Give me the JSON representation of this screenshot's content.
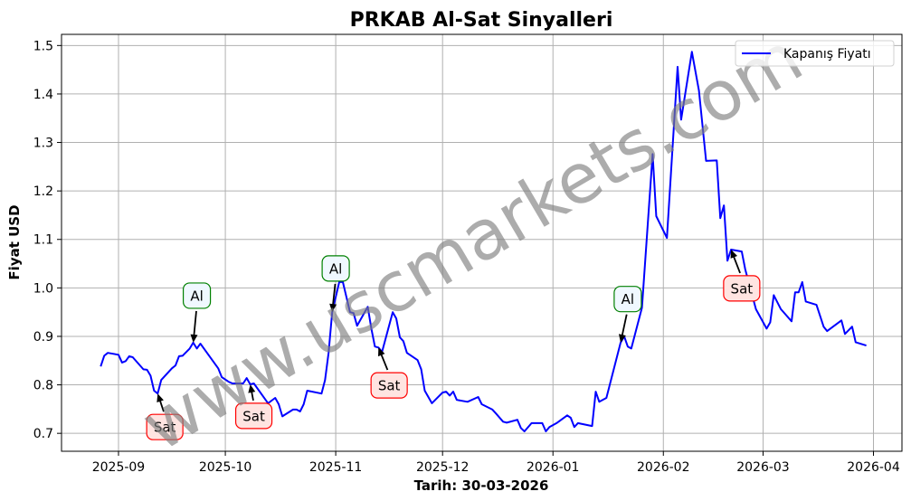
{
  "chart_data": {
    "type": "line",
    "title": "PRKAB Al-Sat Sinyalleri",
    "xlabel": "Tarih: 30-03-2026",
    "ylabel": "Fiyat USD",
    "xlim": [
      "2025-08-16",
      "2026-04-09"
    ],
    "ylim": [
      0.663,
      1.523
    ],
    "x_ticks": [
      "2025-09-01",
      "2025-10-01",
      "2025-11-01",
      "2025-12-01",
      "2026-01-01",
      "2026-02-01",
      "2026-03-01",
      "2026-04-01"
    ],
    "x_tick_labels": [
      "2025-09",
      "2025-10",
      "2025-11",
      "2025-12",
      "2026-01",
      "2026-02",
      "2026-03",
      "2026-04"
    ],
    "y_ticks": [
      0.7,
      0.8,
      0.9,
      1.0,
      1.1,
      1.2,
      1.3,
      1.4,
      1.5
    ],
    "y_tick_labels": [
      "0.7",
      "0.8",
      "0.9",
      "1.0",
      "1.1",
      "1.2",
      "1.3",
      "1.4",
      "1.5"
    ],
    "grid": true,
    "legend_position": "top-right",
    "watermark": "www.uscmarkets.com",
    "series": [
      {
        "name": "Kapanış Fiyatı",
        "color": "#0000ff",
        "points": [
          [
            "2025-08-27",
            0.838
          ],
          [
            "2025-08-28",
            0.86
          ],
          [
            "2025-08-29",
            0.866
          ],
          [
            "2025-09-01",
            0.862
          ],
          [
            "2025-09-02",
            0.846
          ],
          [
            "2025-09-03",
            0.849
          ],
          [
            "2025-09-04",
            0.859
          ],
          [
            "2025-09-05",
            0.857
          ],
          [
            "2025-09-08",
            0.832
          ],
          [
            "2025-09-09",
            0.831
          ],
          [
            "2025-09-10",
            0.819
          ],
          [
            "2025-09-11",
            0.788
          ],
          [
            "2025-09-12",
            0.782
          ],
          [
            "2025-09-13",
            0.81
          ],
          [
            "2025-09-16",
            0.834
          ],
          [
            "2025-09-17",
            0.84
          ],
          [
            "2025-09-18",
            0.859
          ],
          [
            "2025-09-19",
            0.86
          ],
          [
            "2025-09-21",
            0.875
          ],
          [
            "2025-09-22",
            0.887
          ],
          [
            "2025-09-23",
            0.875
          ],
          [
            "2025-09-24",
            0.885
          ],
          [
            "2025-09-29",
            0.834
          ],
          [
            "2025-09-30",
            0.816
          ],
          [
            "2025-10-02",
            0.806
          ],
          [
            "2025-10-03",
            0.803
          ],
          [
            "2025-10-06",
            0.803
          ],
          [
            "2025-10-07",
            0.814
          ],
          [
            "2025-10-08",
            0.801
          ],
          [
            "2025-10-09",
            0.803
          ],
          [
            "2025-10-13",
            0.762
          ],
          [
            "2025-10-15",
            0.773
          ],
          [
            "2025-10-16",
            0.76
          ],
          [
            "2025-10-17",
            0.735
          ],
          [
            "2025-10-20",
            0.749
          ],
          [
            "2025-10-21",
            0.749
          ],
          [
            "2025-10-22",
            0.745
          ],
          [
            "2025-10-23",
            0.76
          ],
          [
            "2025-10-24",
            0.788
          ],
          [
            "2025-10-28",
            0.782
          ],
          [
            "2025-10-29",
            0.81
          ],
          [
            "2025-10-30",
            0.866
          ],
          [
            "2025-10-31",
            0.95
          ],
          [
            "2025-11-02",
            1.012
          ],
          [
            "2025-11-03",
            1.012
          ],
          [
            "2025-11-05",
            0.95
          ],
          [
            "2025-11-06",
            0.948
          ],
          [
            "2025-11-07",
            0.922
          ],
          [
            "2025-11-10",
            0.961
          ],
          [
            "2025-11-11",
            0.916
          ],
          [
            "2025-11-12",
            0.879
          ],
          [
            "2025-11-13",
            0.877
          ],
          [
            "2025-11-14",
            0.868
          ],
          [
            "2025-11-17",
            0.95
          ],
          [
            "2025-11-18",
            0.937
          ],
          [
            "2025-11-19",
            0.898
          ],
          [
            "2025-11-20",
            0.89
          ],
          [
            "2025-11-21",
            0.866
          ],
          [
            "2025-11-24",
            0.851
          ],
          [
            "2025-11-25",
            0.832
          ],
          [
            "2025-11-26",
            0.788
          ],
          [
            "2025-11-28",
            0.762
          ],
          [
            "2025-12-01",
            0.784
          ],
          [
            "2025-12-02",
            0.786
          ],
          [
            "2025-12-03",
            0.778
          ],
          [
            "2025-12-04",
            0.786
          ],
          [
            "2025-12-05",
            0.769
          ],
          [
            "2025-12-08",
            0.765
          ],
          [
            "2025-12-11",
            0.775
          ],
          [
            "2025-12-12",
            0.76
          ],
          [
            "2025-12-15",
            0.749
          ],
          [
            "2025-12-16",
            0.741
          ],
          [
            "2025-12-18",
            0.724
          ],
          [
            "2025-12-19",
            0.722
          ],
          [
            "2025-12-22",
            0.728
          ],
          [
            "2025-12-23",
            0.711
          ],
          [
            "2025-12-24",
            0.704
          ],
          [
            "2025-12-26",
            0.721
          ],
          [
            "2025-12-29",
            0.721
          ],
          [
            "2025-12-30",
            0.704
          ],
          [
            "2025-12-31",
            0.713
          ],
          [
            "2026-01-02",
            0.721
          ],
          [
            "2026-01-05",
            0.737
          ],
          [
            "2026-01-06",
            0.732
          ],
          [
            "2026-01-07",
            0.713
          ],
          [
            "2026-01-08",
            0.721
          ],
          [
            "2026-01-12",
            0.715
          ],
          [
            "2026-01-13",
            0.786
          ],
          [
            "2026-01-14",
            0.765
          ],
          [
            "2026-01-16",
            0.773
          ],
          [
            "2026-01-20",
            0.887
          ],
          [
            "2026-01-21",
            0.9
          ],
          [
            "2026-01-22",
            0.879
          ],
          [
            "2026-01-23",
            0.875
          ],
          [
            "2026-01-26",
            0.959
          ],
          [
            "2026-01-29",
            1.276
          ],
          [
            "2026-01-30",
            1.148
          ],
          [
            "2026-02-02",
            1.103
          ],
          [
            "2026-02-05",
            1.456
          ],
          [
            "2026-02-06",
            1.347
          ],
          [
            "2026-02-09",
            1.487
          ],
          [
            "2026-02-11",
            1.407
          ],
          [
            "2026-02-13",
            1.262
          ],
          [
            "2026-02-16",
            1.263
          ],
          [
            "2026-02-17",
            1.144
          ],
          [
            "2026-02-18",
            1.17
          ],
          [
            "2026-02-19",
            1.056
          ],
          [
            "2026-02-20",
            1.079
          ],
          [
            "2026-02-23",
            1.075
          ],
          [
            "2026-02-24",
            1.038
          ],
          [
            "2026-02-27",
            0.956
          ],
          [
            "2026-03-02",
            0.916
          ],
          [
            "2026-03-03",
            0.929
          ],
          [
            "2026-03-04",
            0.985
          ],
          [
            "2026-03-06",
            0.956
          ],
          [
            "2026-03-09",
            0.931
          ],
          [
            "2026-03-10",
            0.991
          ],
          [
            "2026-03-11",
            0.991
          ],
          [
            "2026-03-12",
            1.012
          ],
          [
            "2026-03-13",
            0.972
          ],
          [
            "2026-03-16",
            0.965
          ],
          [
            "2026-03-18",
            0.92
          ],
          [
            "2026-03-19",
            0.911
          ],
          [
            "2026-03-23",
            0.933
          ],
          [
            "2026-03-24",
            0.905
          ],
          [
            "2026-03-26",
            0.92
          ],
          [
            "2026-03-27",
            0.888
          ],
          [
            "2026-03-30",
            0.881
          ]
        ]
      }
    ],
    "annotations": [
      {
        "label": "Sat",
        "date": "2025-09-12",
        "price": 0.782,
        "text_date": "2025-09-14",
        "text_price": 0.713,
        "type": "sell"
      },
      {
        "label": "Al",
        "date": "2025-09-22",
        "price": 0.887,
        "text_date": "2025-09-23",
        "text_price": 0.984,
        "type": "buy"
      },
      {
        "label": "Sat",
        "date": "2025-10-08",
        "price": 0.801,
        "text_date": "2025-10-09",
        "text_price": 0.736,
        "type": "sell"
      },
      {
        "label": "Al",
        "date": "2025-10-31",
        "price": 0.95,
        "text_date": "2025-11-01",
        "text_price": 1.04,
        "type": "buy"
      },
      {
        "label": "Sat",
        "date": "2025-11-13",
        "price": 0.877,
        "text_date": "2025-11-16",
        "text_price": 0.799,
        "type": "sell"
      },
      {
        "label": "Al",
        "date": "2026-01-20",
        "price": 0.887,
        "text_date": "2026-01-22",
        "text_price": 0.977,
        "type": "buy"
      },
      {
        "label": "Sat",
        "date": "2026-02-20",
        "price": 1.079,
        "text_date": "2026-02-23",
        "text_price": 0.999,
        "type": "sell"
      }
    ],
    "colors": {
      "buy_edge": "#008000",
      "buy_fill": "#f0f8ff",
      "sell_edge": "#ff0000",
      "sell_fill": "#ffe4e1",
      "watermark": "#808080"
    }
  }
}
